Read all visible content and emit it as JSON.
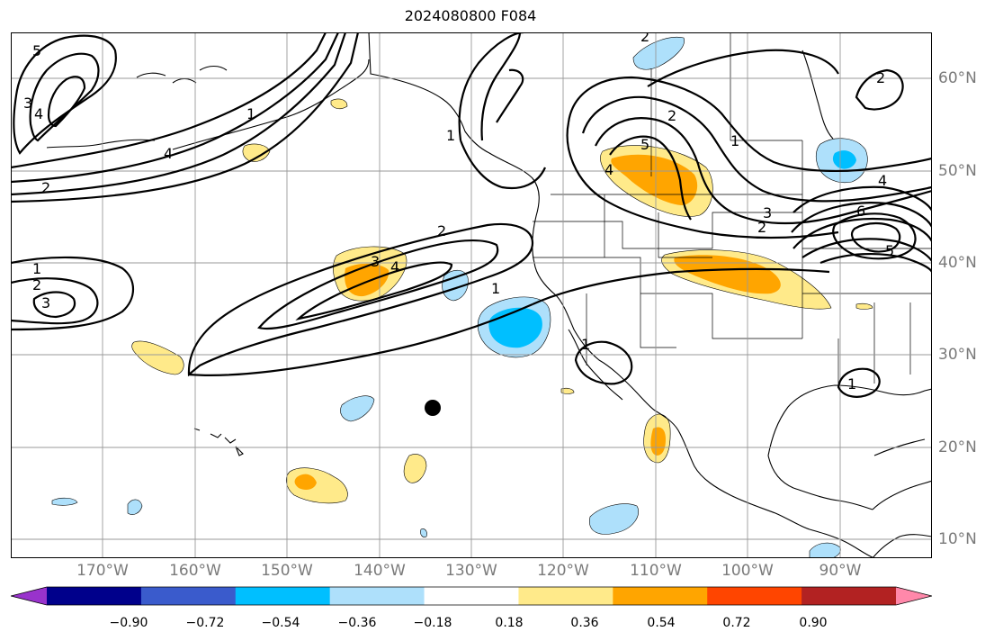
{
  "title": "2024080800 F084",
  "map": {
    "lon_range": [
      -180,
      -80
    ],
    "lat_range": [
      8,
      65
    ],
    "lon_ticks": [
      "170°W",
      "160°W",
      "150°W",
      "140°W",
      "130°W",
      "120°W",
      "110°W",
      "100°W",
      "90°W"
    ],
    "lat_ticks": [
      "60°N",
      "50°N",
      "40°N",
      "30°N",
      "20°N",
      "10°N"
    ],
    "contour_labels": [
      "5",
      "4",
      "3",
      "1",
      "4",
      "2",
      "1",
      "2",
      "3",
      "2",
      "4",
      "3",
      "1",
      "2",
      "5",
      "4",
      "2",
      "1",
      "4",
      "6",
      "5",
      "2",
      "3",
      "1",
      "1",
      "2",
      "1"
    ],
    "marker": "filled black circle"
  },
  "colorbar": {
    "orientation": "horizontal",
    "extend": "both",
    "tick_labels": [
      "−0.90",
      "−0.72",
      "−0.54",
      "−0.36",
      "−0.18",
      "0.18",
      "0.36",
      "0.54",
      "0.72",
      "0.90"
    ],
    "colors": [
      "#9933cc",
      "#00008b",
      "#3a5bcc",
      "#00bfff",
      "#aee0fb",
      "#ffffff",
      "#ffea8a",
      "#ffa500",
      "#ff4500",
      "#b22222",
      "#ff88aa"
    ]
  }
}
